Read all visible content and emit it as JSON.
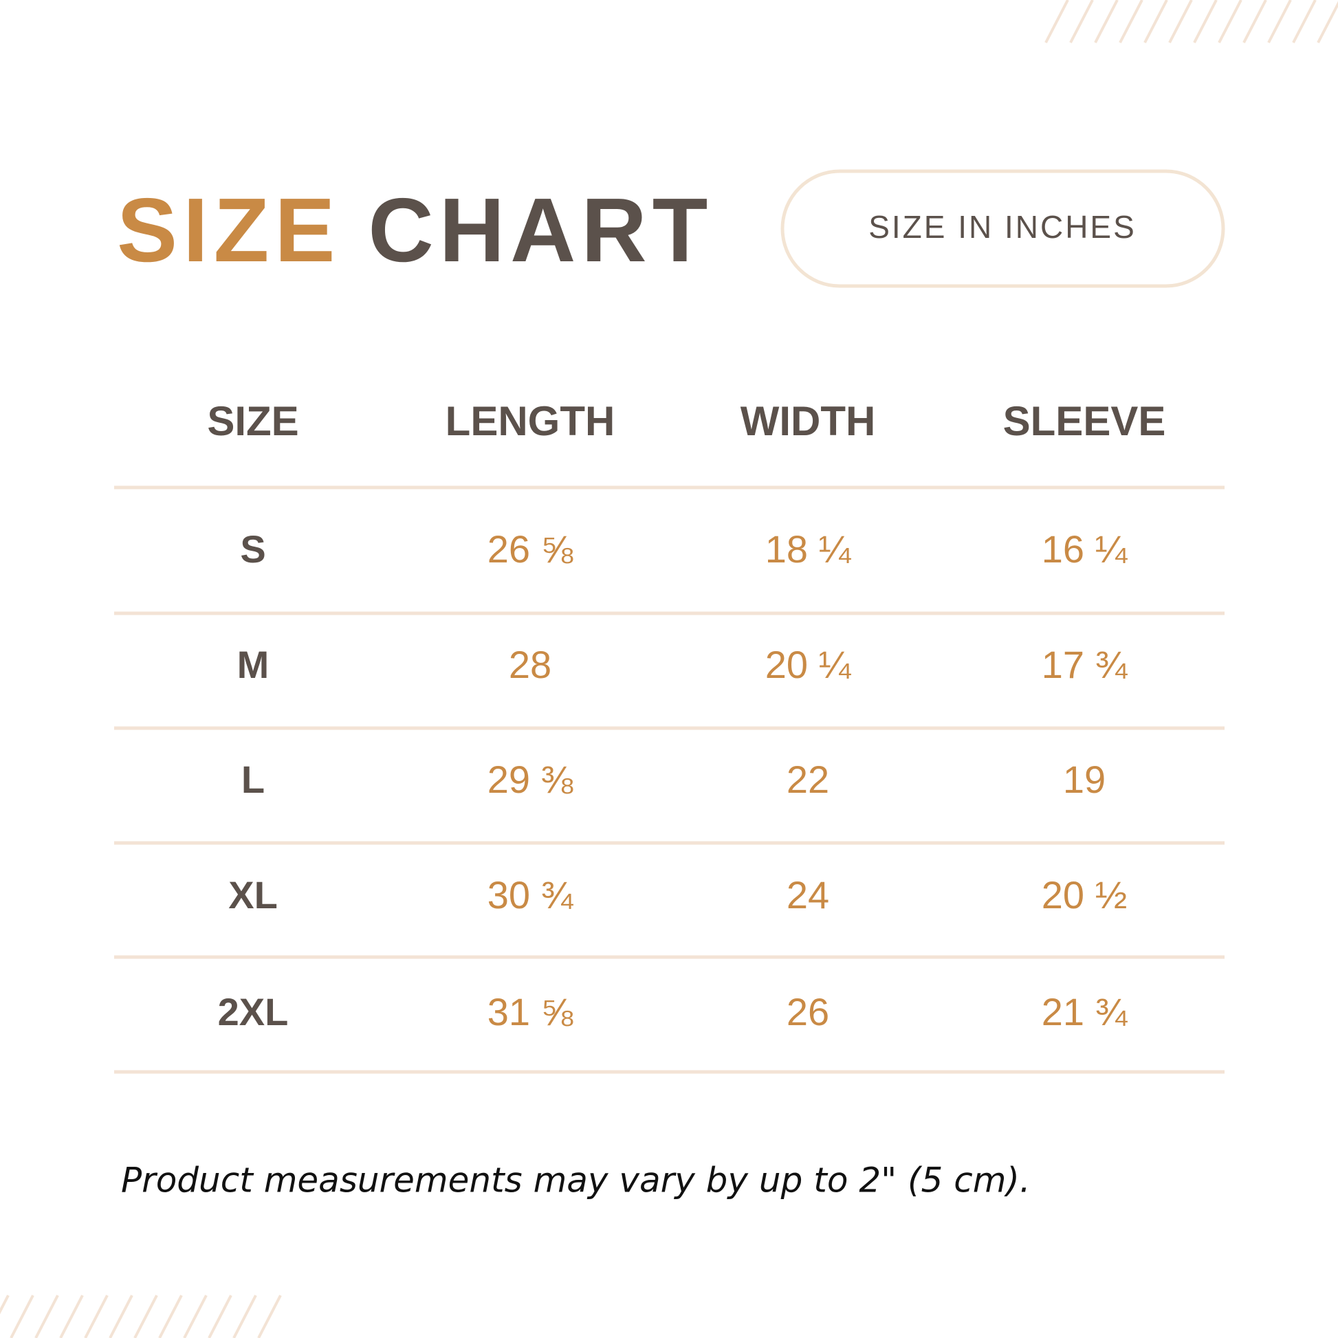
{
  "header": {
    "title_accent": "SIZE",
    "title_main": "CHART",
    "badge": "SIZE IN INCHES"
  },
  "table": {
    "columns": [
      "SIZE",
      "LENGTH",
      "WIDTH",
      "SLEEVE"
    ],
    "rows": [
      [
        "S",
        "26 ⅝",
        "18 ¼",
        "16 ¼"
      ],
      [
        "M",
        "28",
        "20 ¼",
        "17 ¾"
      ],
      [
        "L",
        "29 ⅜",
        "22",
        "19"
      ],
      [
        "XL",
        "30 ¾",
        "24",
        "20 ½"
      ],
      [
        "2XL",
        "31 ⅝",
        "26",
        "21 ¾"
      ]
    ]
  },
  "footnote": "Product measurements may vary by up to 2\" (5 cm)."
}
